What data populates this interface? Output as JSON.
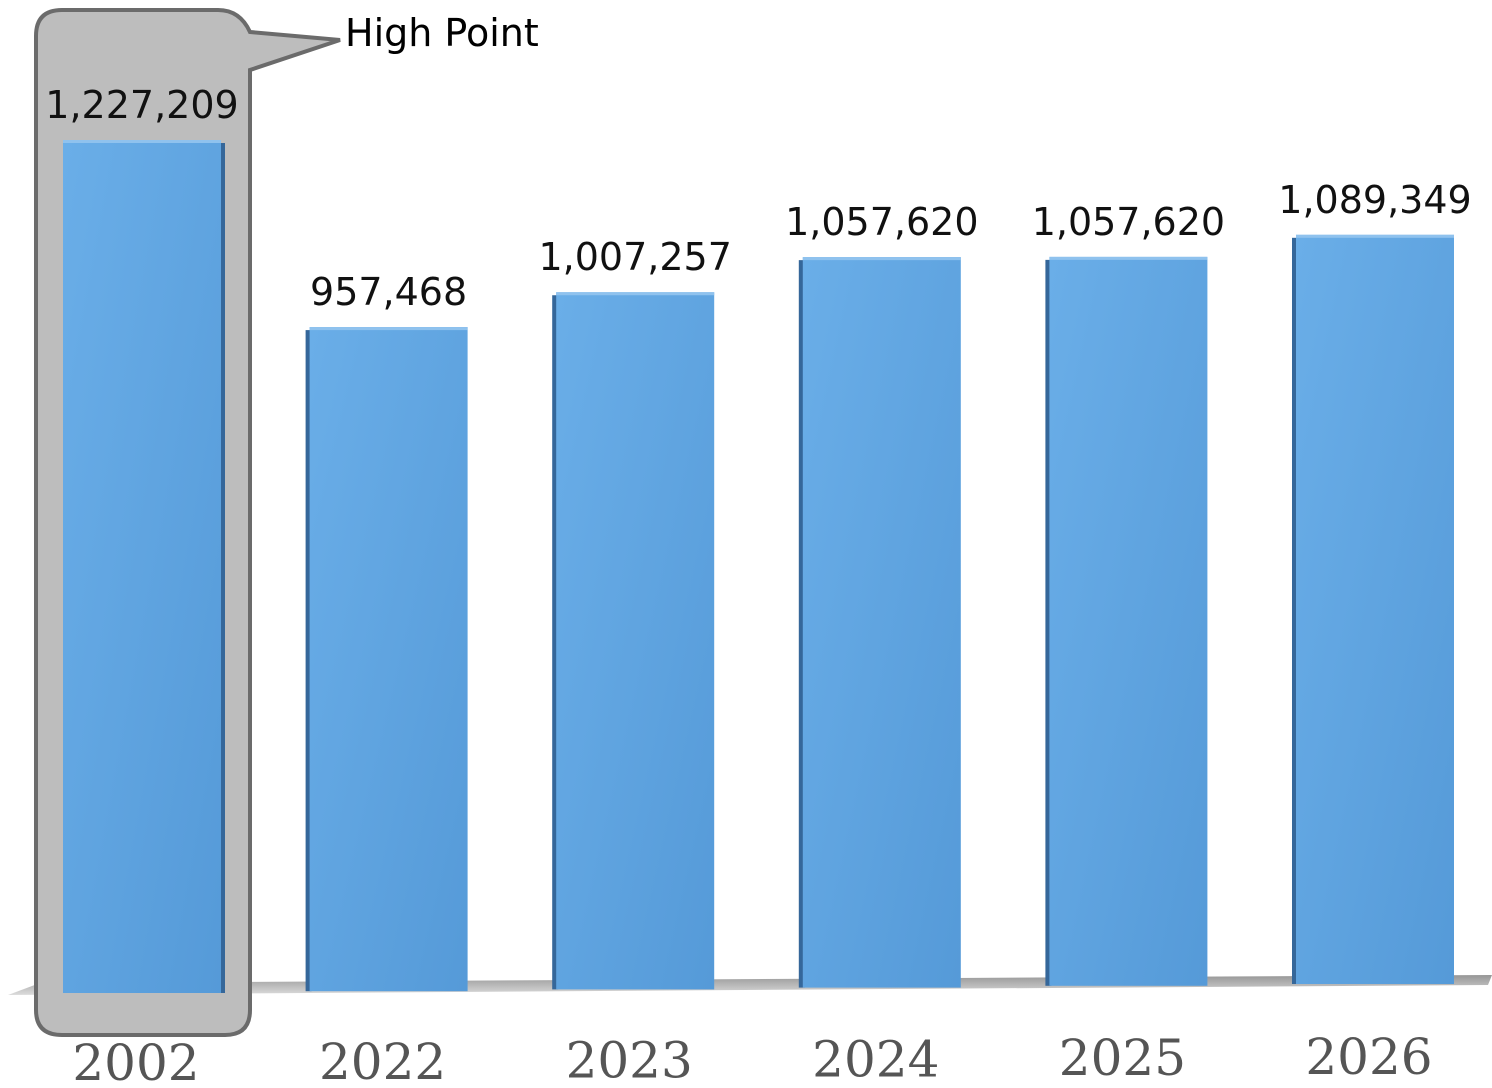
{
  "chart_data": {
    "type": "bar",
    "categories": [
      "2002",
      "2022",
      "2023",
      "2024",
      "2025",
      "2026"
    ],
    "values": [
      1227209,
      957468,
      1007257,
      1057620,
      1057620,
      1089349
    ],
    "value_labels": [
      "1,227,209",
      "957,468",
      "1,007,257",
      "1,057,620",
      "1,057,620",
      "1,089,349"
    ],
    "title": "",
    "xlabel": "",
    "ylabel": "",
    "ylim": [
      0,
      1227209
    ],
    "grid": false,
    "legend": "none",
    "bar_color": "#5b9fdc",
    "annotation": {
      "text": "High Point",
      "category": "2002"
    }
  }
}
